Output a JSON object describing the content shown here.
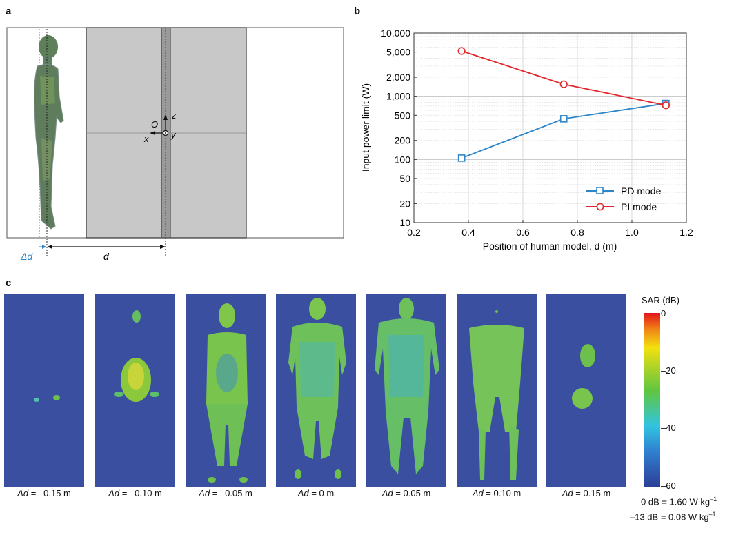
{
  "panel_labels": {
    "a": "a",
    "b": "b",
    "c": "c"
  },
  "panel_a": {
    "axis_z": "z",
    "axis_x": "x",
    "axis_y": "y",
    "origin": "O",
    "delta_d": "Δd",
    "d": "d"
  },
  "chart_data": {
    "type": "line",
    "title": "",
    "xlabel": "Position of human model, d (m)",
    "ylabel": "Input power limit (W)",
    "xlim": [
      0.2,
      1.2
    ],
    "ylim": [
      10,
      10000
    ],
    "yscale": "log",
    "xticks": [
      0.2,
      0.4,
      0.6,
      0.8,
      1.0,
      1.2
    ],
    "xtick_labels": [
      "0.2",
      "0.4",
      "0.6",
      "0.8",
      "1.0",
      "1.2"
    ],
    "yticks": [
      10,
      20,
      50,
      100,
      200,
      500,
      1000,
      2000,
      5000,
      10000
    ],
    "ytick_labels": [
      "10",
      "20",
      "50",
      "100",
      "200",
      "500",
      "1,000",
      "2,000",
      "5,000",
      "10,000"
    ],
    "legend_position": "bottom-right",
    "series": [
      {
        "name": "PD mode",
        "color": "#2e86c8",
        "marker": "square",
        "x": [
          0.375,
          0.75,
          1.125
        ],
        "values": [
          105,
          440,
          770
        ]
      },
      {
        "name": "PI mode",
        "color": "#e3262b",
        "marker": "circle",
        "x": [
          0.375,
          0.75,
          1.125
        ],
        "values": [
          5200,
          1550,
          720
        ]
      }
    ]
  },
  "panel_c": {
    "colorbar_title": "SAR (dB)",
    "colorbar_ticks": [
      "0",
      "–20",
      "–40",
      "–60"
    ],
    "ref_line_1_main": "0 dB = 1.60 W kg",
    "ref_line_1_sup": "–1",
    "ref_line_2_main": "–13 dB = 0.08 W kg",
    "ref_line_2_sup": "–1",
    "delta_symbol": "Δd",
    "slices": [
      {
        "value": " = –0.15 m"
      },
      {
        "value": " = –0.10 m"
      },
      {
        "value": " = –0.05 m"
      },
      {
        "value": " = 0 m"
      },
      {
        "value": " = 0.05 m"
      },
      {
        "value": " = 0.10 m"
      },
      {
        "value": " = 0.15 m"
      }
    ]
  }
}
